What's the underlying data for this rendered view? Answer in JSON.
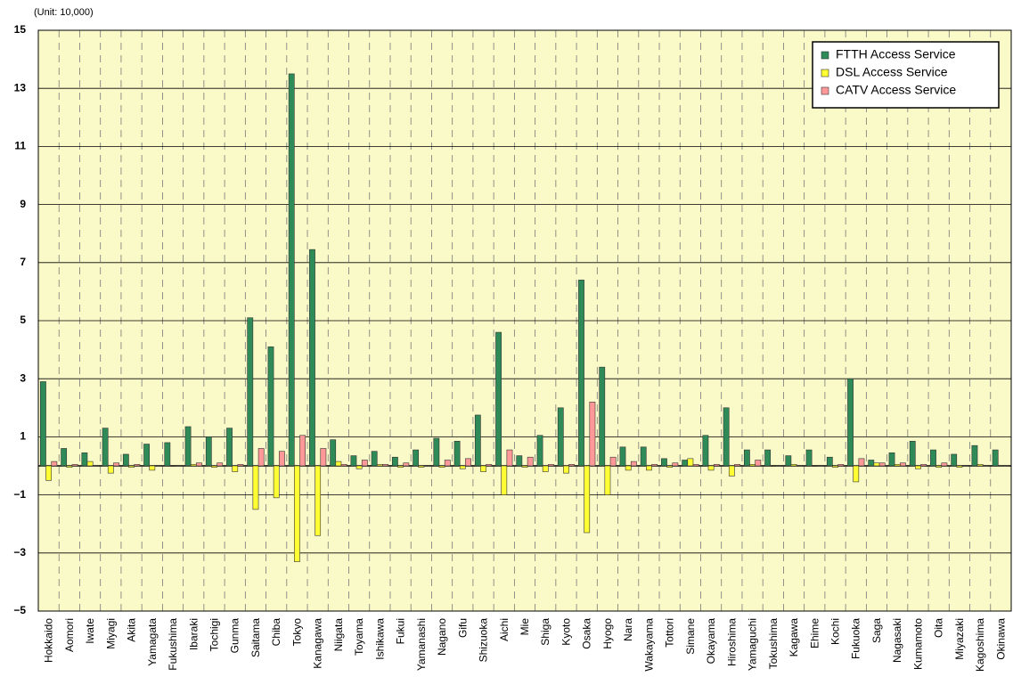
{
  "chart_data": {
    "type": "bar",
    "unit_label": "(Unit: 10,000)",
    "categories": [
      "Hokkaido",
      "Aomori",
      "Iwate",
      "Miyagi",
      "Akita",
      "Yamagata",
      "Fukushima",
      "Ibaraki",
      "Tochigi",
      "Gunma",
      "Saitama",
      "Chiba",
      "Tokyo",
      "Kanagawa",
      "Niigata",
      "Toyama",
      "Ishikawa",
      "Fukui",
      "Yamanashi",
      "Nagano",
      "Gifu",
      "Shizuoka",
      "Aichi",
      "Mie",
      "Shiga",
      "Kyoto",
      "Osaka",
      "Hyogo",
      "Nara",
      "Wakayama",
      "Tottori",
      "Simane",
      "Okayama",
      "Hiroshima",
      "Yamaguchi",
      "Tokushima",
      "Kagawa",
      "Ehime",
      "Kochi",
      "Fukuoka",
      "Saga",
      "Nagasaki",
      "Kumamoto",
      "Oita",
      "Miyazaki",
      "Kagoshima",
      "Okinawa"
    ],
    "series": [
      {
        "name": "FTTH Access Service",
        "color": "#2e8b57",
        "values": [
          2.9,
          0.6,
          0.45,
          1.3,
          0.4,
          0.75,
          0.8,
          1.35,
          1.0,
          1.3,
          5.1,
          4.1,
          13.5,
          7.45,
          0.9,
          0.35,
          0.5,
          0.3,
          0.55,
          0.95,
          0.85,
          1.75,
          4.6,
          0.35,
          1.05,
          2.0,
          6.4,
          3.4,
          0.65,
          0.65,
          0.25,
          0.2,
          1.05,
          2.0,
          0.55,
          0.55,
          0.35,
          0.55,
          0.3,
          3.0,
          0.2,
          0.45,
          0.85,
          0.55,
          0.4,
          0.7,
          0.55
        ]
      },
      {
        "name": "DSL Access Service",
        "color": "#ffff33",
        "values": [
          -0.5,
          -0.05,
          0.15,
          -0.25,
          -0.05,
          -0.15,
          0,
          0.05,
          -0.05,
          -0.2,
          -1.5,
          -1.1,
          -3.3,
          -2.4,
          0.15,
          -0.1,
          0.05,
          -0.05,
          -0.05,
          -0.05,
          -0.1,
          -0.2,
          -1.0,
          -0.05,
          -0.2,
          -0.25,
          -2.3,
          -1.0,
          -0.15,
          -0.15,
          -0.05,
          0.25,
          -0.15,
          -0.35,
          0.05,
          0,
          0.05,
          0,
          -0.05,
          -0.55,
          0.1,
          0.05,
          -0.1,
          -0.05,
          -0.05,
          0.05,
          0.02
        ]
      },
      {
        "name": "CATV Access Service",
        "color": "#ff9999",
        "values": [
          0.15,
          0.05,
          0.02,
          0.1,
          0.05,
          0.02,
          0.02,
          0.1,
          0.1,
          0.05,
          0.6,
          0.5,
          1.05,
          0.6,
          0.05,
          0.2,
          0.05,
          0.1,
          0.02,
          0.2,
          0.25,
          0.05,
          0.55,
          0.3,
          0.05,
          0.05,
          2.2,
          0.3,
          0.15,
          0.05,
          0.1,
          0.05,
          0.05,
          0.05,
          0.2,
          0.02,
          0.02,
          0.02,
          0.05,
          0.25,
          0.1,
          0.1,
          0.05,
          0.1,
          0.02,
          0.02,
          0.02
        ]
      }
    ],
    "ylim": [
      -5,
      15
    ],
    "yticks": [
      {
        "value": -5,
        "label": "−5"
      },
      {
        "value": -3,
        "label": "−3"
      },
      {
        "value": -1,
        "label": "−1"
      },
      1,
      3,
      5,
      7,
      9,
      11,
      13,
      15
    ],
    "grid": true,
    "legend": "upper right"
  }
}
